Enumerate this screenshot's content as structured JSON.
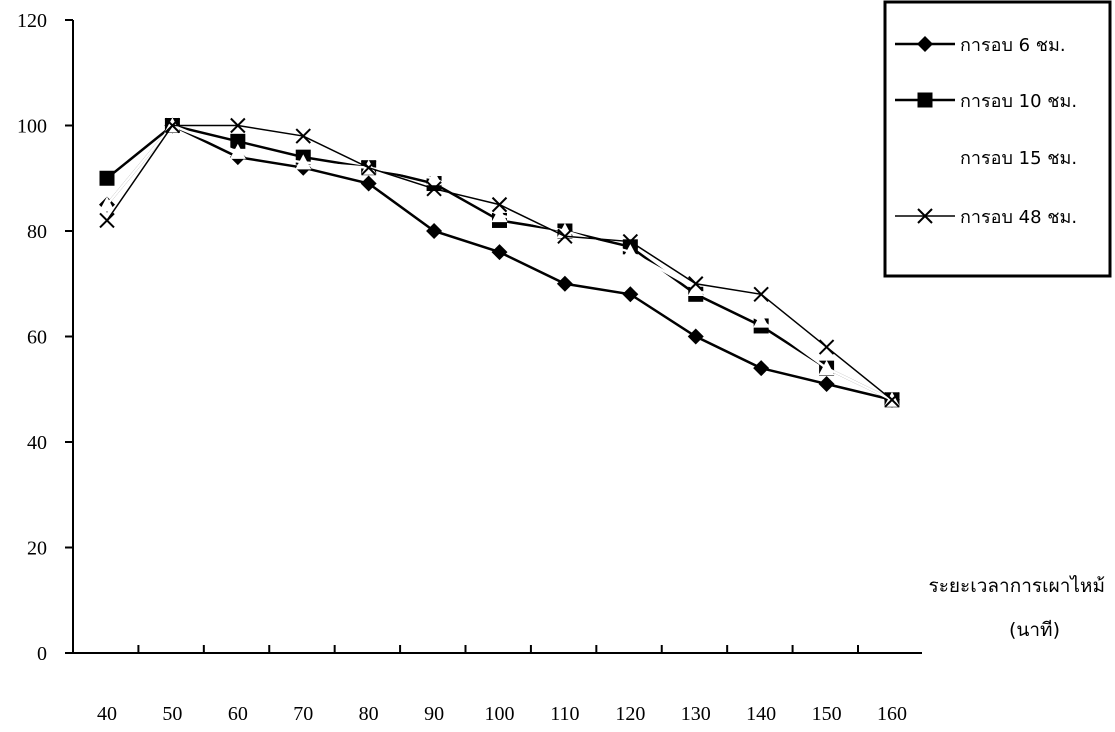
{
  "chart_data": {
    "type": "line",
    "title": "",
    "xlabel": "ระยะเวลาการเผาไหม้",
    "xlabel_unit": "(นาที)",
    "ylabel": "",
    "ylim": [
      0,
      120
    ],
    "yticks": [
      0,
      20,
      40,
      60,
      80,
      100,
      120
    ],
    "grid": false,
    "legend_position": "top-right",
    "categories": [
      "40",
      "50",
      "60",
      "70",
      "80",
      "90",
      "100",
      "110",
      "120",
      "130",
      "140",
      "150",
      "160"
    ],
    "series": [
      {
        "name": "การอบ 6 ชม.",
        "marker": "diamond",
        "color": "#000000",
        "values": [
          85,
          100,
          94,
          92,
          89,
          80,
          76,
          70,
          68,
          60,
          54,
          51,
          48
        ]
      },
      {
        "name": "การอบ 10 ชม.",
        "marker": "square",
        "color": "#000000",
        "values": [
          90,
          100,
          97,
          94,
          92,
          89,
          82,
          80,
          77,
          68,
          62,
          54,
          48
        ]
      },
      {
        "name": "การอบ 15 ชม.",
        "marker": "triangle",
        "color": "#ffffff",
        "values": [
          85,
          100,
          95,
          93,
          92,
          90,
          83,
          80,
          76,
          69,
          63,
          54,
          48
        ]
      },
      {
        "name": "การอบ 48 ชม.",
        "marker": "x",
        "color": "#000000",
        "values": [
          82,
          100,
          100,
          98,
          92,
          88,
          85,
          79,
          78,
          70,
          68,
          58,
          48
        ]
      }
    ]
  }
}
